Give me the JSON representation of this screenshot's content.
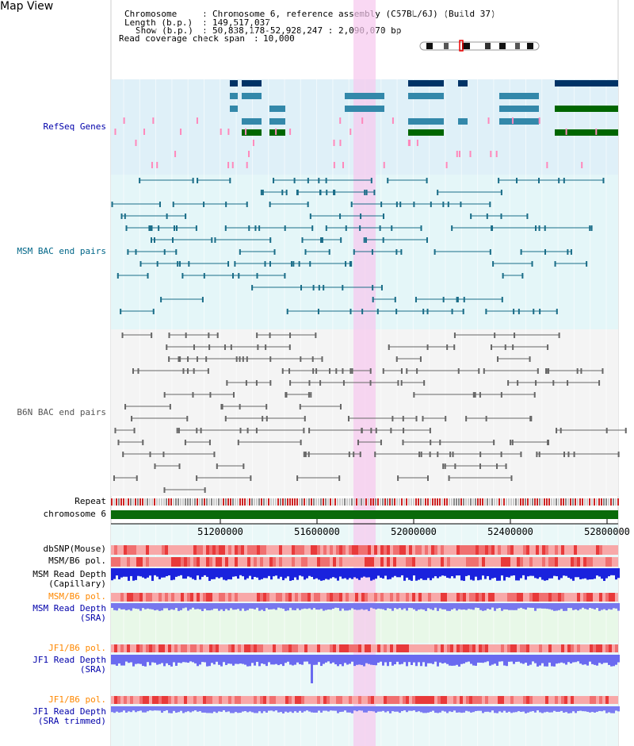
{
  "page": {
    "title": "Map View"
  },
  "header": {
    "chromosome_key": "Chromosome",
    "chromosome_value": "Chromosome 6, reference assembly (C57BL/6J) (Build 37)",
    "length_key": "Length (b.p.)",
    "length_value": "149,517,037",
    "show_key": "Show (b.p.)",
    "show_value": "50,838,178-52,928,247 : 2,090,070 bp",
    "coverage_key": "Read coverage check span",
    "coverage_value": "10,000"
  },
  "tracks": {
    "refseq": {
      "label": "RefSeq Genes",
      "color": "#0000aa"
    },
    "msm_bac": {
      "label": "MSM BAC end pairs",
      "color": "#006688"
    },
    "b6n_bac": {
      "label": "B6N BAC end pairs",
      "color": "#555555"
    },
    "repeat": {
      "label": "Repeat",
      "color": "#000000"
    },
    "chromosome": {
      "label": "chromosome 6",
      "color": "#000000"
    },
    "dbsnp": {
      "label": "dbSNP(Mouse)",
      "color": "#000000"
    },
    "msm_b6_pol_1": {
      "label": "MSM/B6 pol.",
      "color": "#000000"
    },
    "msm_depth_cap": {
      "label_line1": "MSM Read Depth",
      "label_line2": "(Capillary)",
      "color": "#000000"
    },
    "msm_b6_pol_2": {
      "label": "MSM/B6 pol.",
      "color": "#ff8800"
    },
    "msm_depth_sra": {
      "label_line1": "MSM Read Depth",
      "label_line2": "(SRA)",
      "color": "#0000aa"
    },
    "jf1_b6_pol_1": {
      "label": "JF1/B6 pol.",
      "color": "#ff8800"
    },
    "jf1_depth_sra": {
      "label_line1": "JF1 Read Depth",
      "label_line2": "(SRA)",
      "color": "#0000aa"
    },
    "jf1_b6_pol_2": {
      "label": "JF1/B6 pol.",
      "color": "#ff8800"
    },
    "jf1_depth_trim": {
      "label_line1": "JF1 Read Depth",
      "label_line2": "(SRA trimmed)",
      "color": "#0000aa"
    }
  },
  "axis": {
    "ticks": [
      "51200000",
      "51600000",
      "52000000",
      "52400000",
      "52800000"
    ]
  }
}
